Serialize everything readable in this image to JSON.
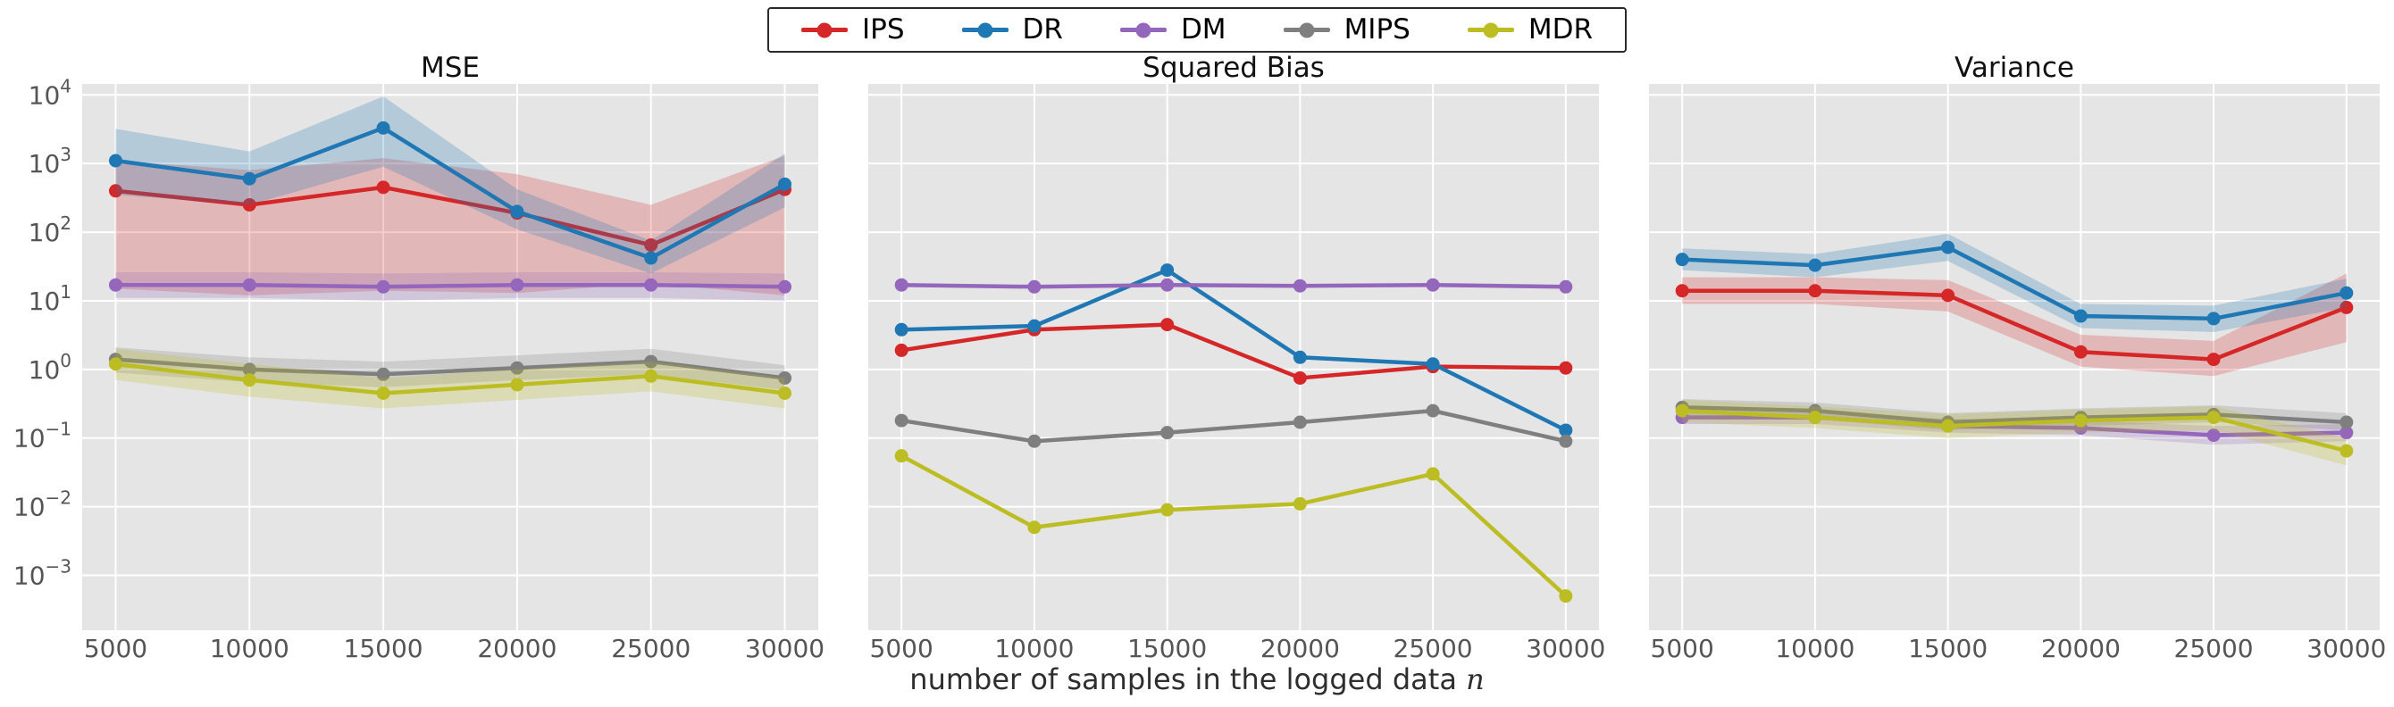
{
  "legend": {
    "items": [
      {
        "label": "IPS",
        "color": "#d62728"
      },
      {
        "label": "DR",
        "color": "#1f77b4"
      },
      {
        "label": "DM",
        "color": "#9467bd"
      },
      {
        "label": "MIPS",
        "color": "#7f7f7f"
      },
      {
        "label": "MDR",
        "color": "#bcbd22"
      }
    ],
    "border_color": "#2b2b2b",
    "background": "#ffffff"
  },
  "axes": {
    "xlabel_text": "number of samples in the logged data ",
    "xlabel_var": "n",
    "x_ticks": [
      5000,
      10000,
      15000,
      20000,
      25000,
      30000
    ],
    "x_domain": [
      3750,
      31250
    ],
    "y_scale": "log",
    "y_tick_exponents": [
      4,
      3,
      2,
      1,
      0,
      -1,
      -2,
      -3
    ],
    "y_log_domain": [
      -3.8,
      4.16
    ],
    "grid": true,
    "grid_color": "#ffffff",
    "plot_background": "#e5e5e5",
    "tick_label_color": "#555555",
    "band_opacity": 0.24
  },
  "chart_data": {
    "type": "line",
    "x": [
      5000,
      10000,
      15000,
      20000,
      25000,
      30000
    ],
    "xlabel": "number of samples in the logged data n",
    "y_scale": "log",
    "legend_position": "top-center",
    "charts": [
      {
        "title": "MSE",
        "ylim": [
          0.00016,
          14500
        ],
        "series": [
          {
            "name": "IPS",
            "values": [
              400,
              250,
              450,
              190,
              65,
              420
            ],
            "band_low": [
              15,
              12,
              14,
              13,
              18,
              12
            ],
            "band_high": [
              1100,
              800,
              1200,
              700,
              250,
              1300
            ]
          },
          {
            "name": "DR",
            "values": [
              1100,
              600,
              3300,
              200,
              42,
              500
            ],
            "band_low": [
              350,
              250,
              900,
              110,
              25,
              230
            ],
            "band_high": [
              3200,
              1500,
              9500,
              420,
              75,
              1400
            ]
          },
          {
            "name": "DM",
            "values": [
              17,
              17,
              16,
              17,
              17,
              16
            ],
            "band_low": [
              11,
              11,
              10,
              11,
              11,
              10
            ],
            "band_high": [
              26,
              26,
              25,
              26,
              26,
              25
            ]
          },
          {
            "name": "MIPS",
            "values": [
              1.4,
              1.0,
              0.85,
              1.05,
              1.3,
              0.75
            ],
            "band_low": [
              0.9,
              0.65,
              0.55,
              0.7,
              0.85,
              0.5
            ],
            "band_high": [
              2.1,
              1.5,
              1.3,
              1.6,
              2.0,
              1.15
            ]
          },
          {
            "name": "MDR",
            "values": [
              1.2,
              0.7,
              0.45,
              0.6,
              0.8,
              0.45
            ],
            "band_low": [
              0.7,
              0.4,
              0.27,
              0.36,
              0.48,
              0.27
            ],
            "band_high": [
              2.0,
              1.2,
              0.75,
              1.0,
              1.3,
              0.75
            ]
          }
        ]
      },
      {
        "title": "Squared Bias",
        "ylim": [
          0.00016,
          14500
        ],
        "series": [
          {
            "name": "IPS",
            "values": [
              1.9,
              3.8,
              4.5,
              0.75,
              1.1,
              1.05
            ],
            "band_low": null,
            "band_high": null
          },
          {
            "name": "DR",
            "values": [
              3.8,
              4.3,
              28,
              1.5,
              1.2,
              0.13
            ],
            "band_low": null,
            "band_high": null
          },
          {
            "name": "DM",
            "values": [
              17,
              16,
              17,
              16.5,
              17,
              16
            ],
            "band_low": null,
            "band_high": null
          },
          {
            "name": "MIPS",
            "values": [
              0.18,
              0.09,
              0.12,
              0.17,
              0.25,
              0.09
            ],
            "band_low": null,
            "band_high": null
          },
          {
            "name": "MDR",
            "values": [
              0.055,
              0.005,
              0.009,
              0.011,
              0.03,
              0.0005
            ],
            "band_low": null,
            "band_high": null
          }
        ]
      },
      {
        "title": "Variance",
        "ylim": [
          0.00016,
          14500
        ],
        "series": [
          {
            "name": "IPS",
            "values": [
              14,
              14,
              12,
              1.8,
              1.4,
              8
            ],
            "band_low": [
              9,
              9,
              7,
              1.1,
              0.8,
              2.5
            ],
            "band_high": [
              22,
              22,
              20,
              3.2,
              2.6,
              25
            ]
          },
          {
            "name": "DR",
            "values": [
              40,
              33,
              60,
              6,
              5.5,
              13
            ],
            "band_low": [
              28,
              22,
              38,
              4,
              3.5,
              8
            ],
            "band_high": [
              58,
              48,
              95,
              9,
              8.5,
              21
            ]
          },
          {
            "name": "DM",
            "values": [
              0.2,
              0.2,
              0.15,
              0.14,
              0.11,
              0.12
            ],
            "band_low": [
              0.16,
              0.16,
              0.12,
              0.11,
              0.08,
              0.09
            ],
            "band_high": [
              0.25,
              0.25,
              0.19,
              0.18,
              0.15,
              0.16
            ]
          },
          {
            "name": "MIPS",
            "values": [
              0.28,
              0.25,
              0.17,
              0.2,
              0.22,
              0.17
            ],
            "band_low": [
              0.21,
              0.19,
              0.13,
              0.15,
              0.17,
              0.13
            ],
            "band_high": [
              0.37,
              0.33,
              0.23,
              0.27,
              0.3,
              0.23
            ]
          },
          {
            "name": "MDR",
            "values": [
              0.25,
              0.2,
              0.15,
              0.18,
              0.2,
              0.065
            ],
            "band_low": [
              0.17,
              0.14,
              0.1,
              0.12,
              0.13,
              0.04
            ],
            "band_high": [
              0.36,
              0.29,
              0.22,
              0.26,
              0.29,
              0.1
            ]
          }
        ]
      }
    ]
  }
}
